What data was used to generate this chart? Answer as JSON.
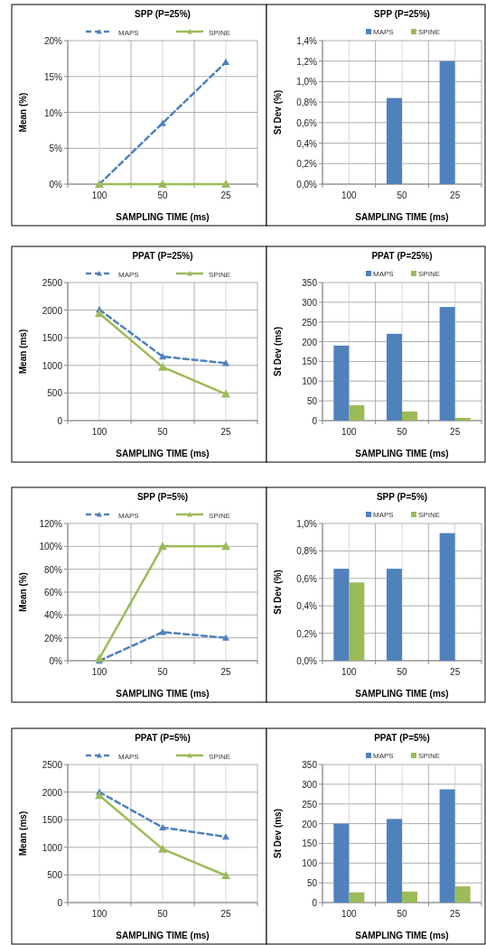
{
  "chart_data": [
    {
      "type": "line",
      "title": "SPP (P=25%)",
      "xlabel": "SAMPLING TIME (ms)",
      "ylabel": "Mean (%)",
      "categories": [
        "100",
        "50",
        "25"
      ],
      "ylim": [
        0,
        20
      ],
      "yticks": [
        {
          "value": 0,
          "label": "0%"
        },
        {
          "value": 5,
          "label": "5%"
        },
        {
          "value": 10,
          "label": "10%"
        },
        {
          "value": 15,
          "label": "15%"
        },
        {
          "value": 20,
          "label": "20%"
        }
      ],
      "grid": true,
      "legend": "top",
      "marker": "triangle",
      "series": [
        {
          "name": "MAPS",
          "color": "#4f81bd",
          "line_style": "dashed",
          "values": [
            0,
            8.5,
            17
          ]
        },
        {
          "name": "SPINE",
          "color": "#9bbb59",
          "line_style": "solid",
          "values": [
            0,
            0,
            0
          ]
        }
      ]
    },
    {
      "type": "bar",
      "title": "SPP (P=25%)",
      "xlabel": "SAMPLING TIME (ms)",
      "ylabel": "St Dev (%)",
      "categories": [
        "100",
        "50",
        "25"
      ],
      "ylim": [
        0,
        1.4
      ],
      "yticks": [
        {
          "value": 0,
          "label": "0,0%"
        },
        {
          "value": 0.2,
          "label": "0,2%"
        },
        {
          "value": 0.4,
          "label": "0,4%"
        },
        {
          "value": 0.6,
          "label": "0,6%"
        },
        {
          "value": 0.8,
          "label": "0,8%"
        },
        {
          "value": 1,
          "label": "1,0%"
        },
        {
          "value": 1.2,
          "label": "1,2%"
        },
        {
          "value": 1.4,
          "label": "1,4%"
        }
      ],
      "grid": true,
      "legend": "top",
      "series": [
        {
          "name": "MAPS",
          "color": "#4f81bd",
          "values": [
            0,
            0.84,
            1.2
          ]
        },
        {
          "name": "SPINE",
          "color": "#9bbb59",
          "values": [
            0,
            0,
            0
          ]
        }
      ]
    },
    {
      "type": "line",
      "title": "PPAT (P=25%)",
      "xlabel": "SAMPLING TIME (ms)",
      "ylabel": "Mean (ms)",
      "categories": [
        "100",
        "50",
        "25"
      ],
      "ylim": [
        0,
        2500
      ],
      "yticks": [
        0,
        500,
        1000,
        1500,
        2000,
        2500
      ],
      "grid": true,
      "legend": "top",
      "marker": "triangle",
      "series": [
        {
          "name": "MAPS",
          "color": "#4f81bd",
          "line_style": "dashed",
          "values": [
            2010,
            1160,
            1040
          ]
        },
        {
          "name": "SPINE",
          "color": "#9bbb59",
          "line_style": "solid",
          "values": [
            1940,
            970,
            480
          ]
        }
      ]
    },
    {
      "type": "bar",
      "title": "PPAT (P=25%)",
      "xlabel": "SAMPLING TIME (ms)",
      "ylabel": "St Dev (ms)",
      "categories": [
        "100",
        "50",
        "25"
      ],
      "ylim": [
        0,
        350
      ],
      "yticks": [
        0,
        50,
        100,
        150,
        200,
        250,
        300,
        350
      ],
      "grid": true,
      "legend": "top",
      "series": [
        {
          "name": "MAPS",
          "color": "#4f81bd",
          "values": [
            190,
            220,
            288
          ]
        },
        {
          "name": "SPINE",
          "color": "#9bbb59",
          "values": [
            39,
            23,
            7
          ]
        }
      ]
    },
    {
      "type": "line",
      "title": "SPP (P=5%)",
      "xlabel": "SAMPLING TIME (ms)",
      "ylabel": "Mean (%)",
      "categories": [
        "100",
        "50",
        "25"
      ],
      "ylim": [
        0,
        120
      ],
      "yticks": [
        {
          "value": 0,
          "label": "0%"
        },
        {
          "value": 20,
          "label": "20%"
        },
        {
          "value": 40,
          "label": "40%"
        },
        {
          "value": 60,
          "label": "60%"
        },
        {
          "value": 80,
          "label": "80%"
        },
        {
          "value": 100,
          "label": "100%"
        },
        {
          "value": 120,
          "label": "120%"
        }
      ],
      "grid": true,
      "legend": "top",
      "marker": "triangle",
      "series": [
        {
          "name": "MAPS",
          "color": "#4f81bd",
          "line_style": "dashed",
          "values": [
            0,
            25,
            20
          ]
        },
        {
          "name": "SPINE",
          "color": "#9bbb59",
          "line_style": "solid",
          "values": [
            2,
            100,
            100
          ]
        }
      ]
    },
    {
      "type": "bar",
      "title": "SPP (P=5%)",
      "xlabel": "SAMPLING TIME (ms)",
      "ylabel": "St Dev (%)",
      "categories": [
        "100",
        "50",
        "25"
      ],
      "ylim": [
        0,
        1
      ],
      "yticks": [
        {
          "value": 0,
          "label": "0,0%"
        },
        {
          "value": 0.2,
          "label": "0,2%"
        },
        {
          "value": 0.4,
          "label": "0,4%"
        },
        {
          "value": 0.6,
          "label": "0,6%"
        },
        {
          "value": 0.8,
          "label": "0,8%"
        },
        {
          "value": 1,
          "label": "1,0%"
        }
      ],
      "grid": true,
      "legend": "top",
      "series": [
        {
          "name": "MAPS",
          "color": "#4f81bd",
          "values": [
            0.67,
            0.67,
            0.93
          ]
        },
        {
          "name": "SPINE",
          "color": "#9bbb59",
          "values": [
            0.57,
            0,
            0
          ]
        }
      ]
    },
    {
      "type": "line",
      "title": "PPAT (P=5%)",
      "xlabel": "SAMPLING TIME (ms)",
      "ylabel": "Mean (ms)",
      "categories": [
        "100",
        "50",
        "25"
      ],
      "ylim": [
        0,
        2500
      ],
      "yticks": [
        0,
        500,
        1000,
        1500,
        2000,
        2500
      ],
      "grid": true,
      "legend": "top",
      "marker": "triangle",
      "series": [
        {
          "name": "MAPS",
          "color": "#4f81bd",
          "line_style": "dashed",
          "values": [
            2000,
            1360,
            1190
          ]
        },
        {
          "name": "SPINE",
          "color": "#9bbb59",
          "line_style": "solid",
          "values": [
            1940,
            970,
            490
          ]
        }
      ]
    },
    {
      "type": "bar",
      "title": "PPAT (P=5%)",
      "xlabel": "SAMPLING TIME (ms)",
      "ylabel": "St Dev (ms)",
      "categories": [
        "100",
        "50",
        "25"
      ],
      "ylim": [
        0,
        350
      ],
      "yticks": [
        0,
        50,
        100,
        150,
        200,
        250,
        300,
        350
      ],
      "grid": true,
      "legend": "top",
      "series": [
        {
          "name": "MAPS",
          "color": "#4f81bd",
          "values": [
            200,
            212,
            287
          ]
        },
        {
          "name": "SPINE",
          "color": "#9bbb59",
          "values": [
            26,
            28,
            41
          ]
        }
      ]
    }
  ]
}
